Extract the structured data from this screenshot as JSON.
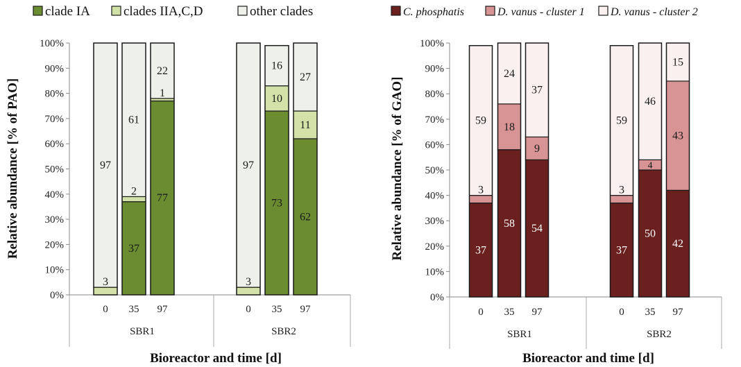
{
  "chart_data": [
    {
      "type": "bar",
      "stacked": true,
      "ylabel": "Relative abundance [% of PAO]",
      "xlabel": "Bioreactor and time [d]",
      "ylim": [
        0,
        100
      ],
      "yticks": [
        "0%",
        "10%",
        "20%",
        "30%",
        "40%",
        "50%",
        "60%",
        "70%",
        "80%",
        "90%",
        "100%"
      ],
      "categories": [
        "0",
        "35",
        "97",
        "0",
        "35",
        "97"
      ],
      "groups": [
        {
          "label": "SBR1",
          "categories": [
            "0",
            "35",
            "97"
          ]
        },
        {
          "label": "SBR2",
          "categories": [
            "0",
            "35",
            "97"
          ]
        }
      ],
      "legend_position": "top",
      "series": [
        {
          "name": "clade IA",
          "color": "#6b8c30",
          "label_color": "#1a1a1a",
          "values": [
            0,
            37,
            77,
            0,
            73,
            62
          ]
        },
        {
          "name": "clades IIA,C,D",
          "color": "#d2e2a8",
          "label_color": "#1a1a1a",
          "values": [
            3,
            2,
            1,
            3,
            10,
            11
          ]
        },
        {
          "name": "other clades",
          "color": "#eef1ea",
          "label_color": "#1a1a1a",
          "values": [
            97,
            61,
            22,
            97,
            16,
            27
          ]
        }
      ]
    },
    {
      "type": "bar",
      "stacked": true,
      "ylabel": "Relative abundance [% of GAO]",
      "xlabel": "Bioreactor and time [d]",
      "ylim": [
        0,
        100
      ],
      "yticks": [
        "0%",
        "10%",
        "20%",
        "30%",
        "40%",
        "50%",
        "60%",
        "70%",
        "80%",
        "90%",
        "100%"
      ],
      "categories": [
        "0",
        "35",
        "97",
        "0",
        "35",
        "97"
      ],
      "groups": [
        {
          "label": "SBR1",
          "categories": [
            "0",
            "35",
            "97"
          ]
        },
        {
          "label": "SBR2",
          "categories": [
            "0",
            "35",
            "97"
          ]
        }
      ],
      "legend_position": "top",
      "series": [
        {
          "name": "C. phosphatis",
          "color": "#6b2020",
          "label_color": "#ffffff",
          "values": [
            37,
            58,
            54,
            37,
            50,
            42
          ]
        },
        {
          "name": "D. vanus - cluster 1",
          "color": "#d89494",
          "label_color": "#1a1a1a",
          "values": [
            3,
            18,
            9,
            3,
            4,
            43
          ]
        },
        {
          "name": "D. vanus - cluster 2",
          "color": "#faf0f0",
          "label_color": "#1a1a1a",
          "values": [
            59,
            24,
            37,
            59,
            46,
            15
          ]
        }
      ]
    }
  ]
}
